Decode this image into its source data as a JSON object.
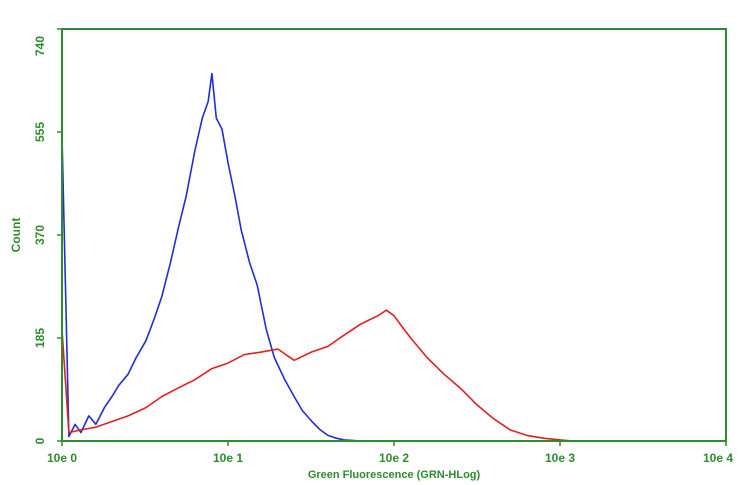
{
  "chart_data": {
    "type": "line",
    "title": "",
    "xlabel": "Green Fluorescence (GRN-HLog)",
    "ylabel": "Count",
    "x_scale": "log",
    "xlim": [
      1,
      10000
    ],
    "ylim": [
      0,
      740
    ],
    "x_ticks": [
      {
        "value": 1,
        "label": "10e 0"
      },
      {
        "value": 10,
        "label": "10e 1"
      },
      {
        "value": 100,
        "label": "10e 2"
      },
      {
        "value": 1000,
        "label": "10e 3"
      },
      {
        "value": 10000,
        "label": "10e 4"
      }
    ],
    "y_ticks": [
      {
        "value": 0,
        "label": "0"
      },
      {
        "value": 185,
        "label": "185"
      },
      {
        "value": 370,
        "label": "370"
      },
      {
        "value": 555,
        "label": "555"
      },
      {
        "value": 740,
        "label": "740"
      }
    ],
    "grid": false,
    "legend": "none",
    "colors": {
      "frame": "#2e8b2e",
      "series_1": "#1f2fd0",
      "series_2": "#e02020"
    },
    "series": [
      {
        "color": "#1f2fd0",
        "x": [
          1.0,
          1.1,
          1.2,
          1.3,
          1.45,
          1.6,
          1.8,
          2.0,
          2.2,
          2.5,
          2.8,
          3.2,
          3.6,
          4.0,
          4.5,
          5.0,
          5.6,
          6.3,
          7.0,
          7.6,
          8.0,
          8.5,
          9.2,
          10.0,
          11.0,
          12.0,
          13.5,
          15.0,
          17.0,
          19.0,
          22.0,
          25.0,
          28.0,
          32.0,
          36.0,
          40.0,
          45.0,
          50.0,
          56.0,
          63.0
        ],
        "y": [
          550,
          8,
          30,
          15,
          45,
          30,
          60,
          80,
          100,
          120,
          150,
          180,
          220,
          260,
          320,
          380,
          440,
          520,
          580,
          610,
          660,
          580,
          560,
          500,
          440,
          380,
          320,
          280,
          200,
          150,
          110,
          80,
          55,
          35,
          20,
          10,
          5,
          2,
          1,
          0
        ]
      },
      {
        "color": "#e02020",
        "x": [
          1.0,
          1.1,
          1.3,
          1.6,
          2.0,
          2.5,
          3.2,
          4.0,
          5.0,
          6.3,
          8.0,
          10.0,
          12.5,
          16.0,
          20.0,
          25.0,
          32.0,
          40.0,
          50.0,
          63.0,
          80.0,
          90.0,
          100.0,
          112.0,
          126.0,
          158.0,
          200.0,
          251.0,
          316.0,
          398.0,
          501.0,
          631.0,
          794.0,
          1000.0,
          1200.0
        ],
        "y": [
          200,
          15,
          20,
          25,
          35,
          45,
          60,
          80,
          95,
          110,
          130,
          140,
          155,
          160,
          165,
          145,
          160,
          170,
          190,
          210,
          225,
          235,
          225,
          205,
          185,
          150,
          120,
          95,
          65,
          40,
          20,
          10,
          5,
          2,
          0
        ]
      }
    ]
  }
}
